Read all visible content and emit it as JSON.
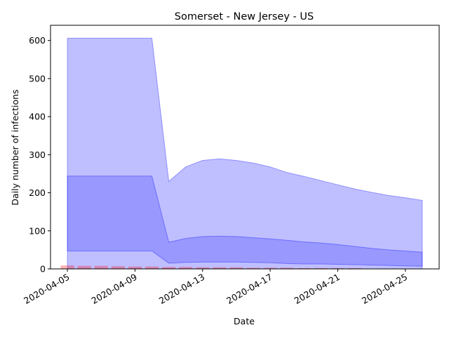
{
  "chart_data": {
    "type": "area",
    "title": "Somerset - New Jersey - US",
    "xlabel": "Date",
    "ylabel": "Daily number of infections",
    "xlim": [
      "2020-04-04",
      "2020-04-27"
    ],
    "ylim": [
      0,
      640
    ],
    "x_ticks": [
      "2020-04-05",
      "2020-04-09",
      "2020-04-13",
      "2020-04-17",
      "2020-04-21",
      "2020-04-25"
    ],
    "y_ticks": [
      0,
      100,
      200,
      300,
      400,
      500,
      600
    ],
    "grid": false,
    "legend": "none",
    "x": [
      "2020-04-05",
      "2020-04-06",
      "2020-04-07",
      "2020-04-08",
      "2020-04-09",
      "2020-04-10",
      "2020-04-11",
      "2020-04-12",
      "2020-04-13",
      "2020-04-14",
      "2020-04-15",
      "2020-04-16",
      "2020-04-17",
      "2020-04-18",
      "2020-04-19",
      "2020-04-20",
      "2020-04-21",
      "2020-04-22",
      "2020-04-23",
      "2020-04-24",
      "2020-04-25",
      "2020-04-26"
    ],
    "bands": [
      {
        "color": "#0000ff",
        "opacity": 0.25,
        "lower": [
          0,
          0,
          0,
          0,
          0,
          0,
          0,
          0,
          0,
          0,
          0,
          0,
          0,
          0,
          0,
          0,
          0,
          0,
          0,
          0,
          0,
          0
        ],
        "upper": [
          606,
          606,
          606,
          606,
          606,
          606,
          230,
          268,
          285,
          289,
          285,
          278,
          268,
          253,
          243,
          232,
          221,
          210,
          201,
          193,
          187,
          180
        ]
      },
      {
        "color": "#0000ff",
        "opacity": 0.2,
        "lower": [
          47,
          47,
          47,
          47,
          47,
          47,
          15,
          17,
          18,
          18,
          18,
          17,
          16,
          14,
          13,
          13,
          12,
          11,
          10,
          9,
          8,
          7
        ],
        "upper": [
          244,
          244,
          244,
          244,
          244,
          244,
          70,
          80,
          85,
          86,
          85,
          82,
          79,
          75,
          71,
          68,
          64,
          59,
          54,
          50,
          47,
          44
        ]
      }
    ],
    "bars": {
      "color": "#ff0000",
      "opacity": 0.3,
      "x": [
        "2020-04-05",
        "2020-04-06",
        "2020-04-07",
        "2020-04-08",
        "2020-04-09",
        "2020-04-10",
        "2020-04-11",
        "2020-04-12",
        "2020-04-13",
        "2020-04-14",
        "2020-04-15",
        "2020-04-16",
        "2020-04-17",
        "2020-04-18",
        "2020-04-19",
        "2020-04-20",
        "2020-04-21",
        "2020-04-22",
        "2020-04-23",
        "2020-04-24",
        "2020-04-25"
      ],
      "values": [
        9,
        8,
        8,
        7,
        6,
        6,
        5,
        5,
        4,
        4,
        4,
        3,
        3,
        3,
        2,
        2,
        2,
        2,
        1,
        1,
        1
      ]
    }
  }
}
